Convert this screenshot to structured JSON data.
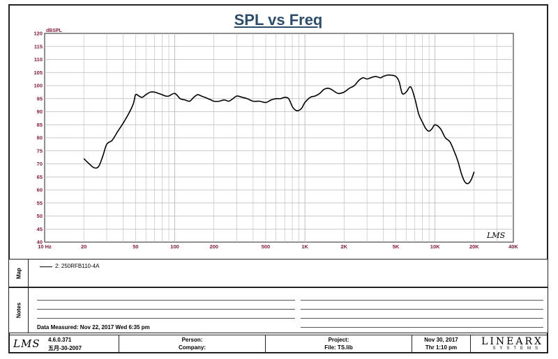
{
  "chart_data": {
    "type": "line",
    "title": "SPL vs Freq",
    "ylabel": "dBSPL",
    "xlabel": "",
    "x_scale": "log",
    "xlim": [
      10,
      40000
    ],
    "ylim": [
      40,
      120
    ],
    "grid": true,
    "x_ticks": [
      {
        "value": 10,
        "label": "10 Hz"
      },
      {
        "value": 20,
        "label": "20"
      },
      {
        "value": 50,
        "label": "50"
      },
      {
        "value": 100,
        "label": "100"
      },
      {
        "value": 200,
        "label": "200"
      },
      {
        "value": 500,
        "label": "500"
      },
      {
        "value": 1000,
        "label": "1K"
      },
      {
        "value": 2000,
        "label": "2K"
      },
      {
        "value": 5000,
        "label": "5K"
      },
      {
        "value": 10000,
        "label": "10K"
      },
      {
        "value": 20000,
        "label": "20K"
      },
      {
        "value": 40000,
        "label": "40K"
      }
    ],
    "y_ticks": [
      40,
      45,
      50,
      55,
      60,
      65,
      70,
      75,
      80,
      85,
      90,
      95,
      100,
      105,
      110,
      115,
      120
    ],
    "series": [
      {
        "name": "2: 250RFB110-4A",
        "x": [
          20,
          22,
          24,
          26,
          28,
          30,
          33,
          36,
          40,
          44,
          48,
          50,
          53,
          56,
          60,
          65,
          70,
          75,
          80,
          85,
          90,
          100,
          110,
          120,
          130,
          140,
          150,
          160,
          170,
          180,
          190,
          200,
          220,
          240,
          260,
          280,
          300,
          330,
          360,
          400,
          450,
          500,
          550,
          600,
          650,
          700,
          750,
          800,
          850,
          900,
          950,
          1000,
          1100,
          1200,
          1300,
          1400,
          1500,
          1600,
          1800,
          2000,
          2200,
          2400,
          2600,
          2800,
          3000,
          3200,
          3500,
          3800,
          4000,
          4300,
          4600,
          5000,
          5300,
          5600,
          6000,
          6500,
          7000,
          7500,
          8000,
          8500,
          9000,
          9500,
          10000,
          11000,
          12000,
          13000,
          14000,
          15000,
          16000,
          17000,
          18000,
          19000,
          20000
        ],
        "y": [
          72,
          70,
          68.5,
          69,
          73,
          77.5,
          79,
          82,
          85.5,
          89,
          93,
          96.5,
          96,
          95.5,
          96.5,
          97.5,
          97.5,
          97,
          96.5,
          96,
          96,
          97,
          95,
          94.5,
          94,
          95.5,
          96.5,
          96,
          95.5,
          95,
          94.5,
          94,
          94,
          94.5,
          94,
          95,
          96,
          95.5,
          95,
          94,
          94,
          93.5,
          94.5,
          95,
          95,
          95.5,
          95,
          92,
          90.5,
          90.5,
          91.5,
          93.5,
          95.5,
          96,
          97,
          98.5,
          99,
          98.5,
          97,
          97.5,
          99,
          100,
          102,
          103,
          102.5,
          103,
          103.5,
          103,
          103.5,
          104,
          104,
          103.5,
          101.5,
          97,
          97.5,
          99.5,
          95,
          89,
          86,
          83.5,
          82.5,
          83.5,
          85,
          83.5,
          80,
          78.5,
          75,
          71,
          66,
          63,
          62.5,
          64,
          67
        ]
      }
    ]
  },
  "legend": {
    "map_label": "Map",
    "entry": "2: 250RFB110-4A"
  },
  "notes": {
    "label": "Notes",
    "measured": "Data Measured: Nov 22, 2017  Wed  6:35 pm"
  },
  "footer": {
    "logo": "LMS",
    "version": "4.6.0.371",
    "build": "五月-30-2007",
    "person": "Person:",
    "company": "Company:",
    "project": "Project:",
    "file": "File: TS.lib",
    "date": "Nov 30, 2017",
    "time": "Thr  1:10 pm",
    "brand": "LINEARX",
    "brand_sub": "SYSTEMS"
  },
  "watermark": "LMS",
  "colors": {
    "title": "#2c4e6e",
    "axis_labels": "#8b1a3a",
    "grid": "#b8b8b8",
    "trace": "#000000"
  }
}
